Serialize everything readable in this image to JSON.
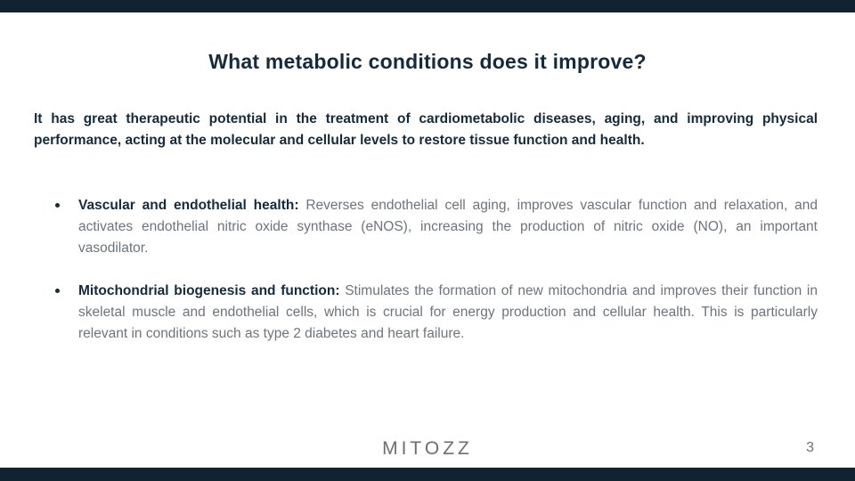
{
  "slide": {
    "title": "What metabolic conditions does it improve?",
    "intro": "It has great therapeutic potential in the treatment of cardiometabolic diseases, aging, and improving physical performance, acting at the molecular and cellular levels to restore tissue function and health.",
    "bullets": [
      {
        "lead": "Vascular and endothelial health:",
        "text": " Reverses endothelial cell aging, improves vascular function and relaxation, and activates endothelial nitric oxide synthase (eNOS), increasing the production of nitric oxide (NO), an important vasodilator."
      },
      {
        "lead": "Mitochondrial biogenesis and function:",
        "text": " Stimulates the formation of new mitochondria and improves their function in skeletal muscle and endothelial cells, which is crucial for energy production and cellular health. This is particularly relevant in conditions such as type 2 diabetes and heart failure."
      }
    ],
    "footer": {
      "brand": "MITOZZ",
      "page_number": "3"
    },
    "colors": {
      "bar": "#112330",
      "heading": "#152b3c",
      "body_text": "#6d747b",
      "footer_text": "#6b6f72"
    }
  }
}
